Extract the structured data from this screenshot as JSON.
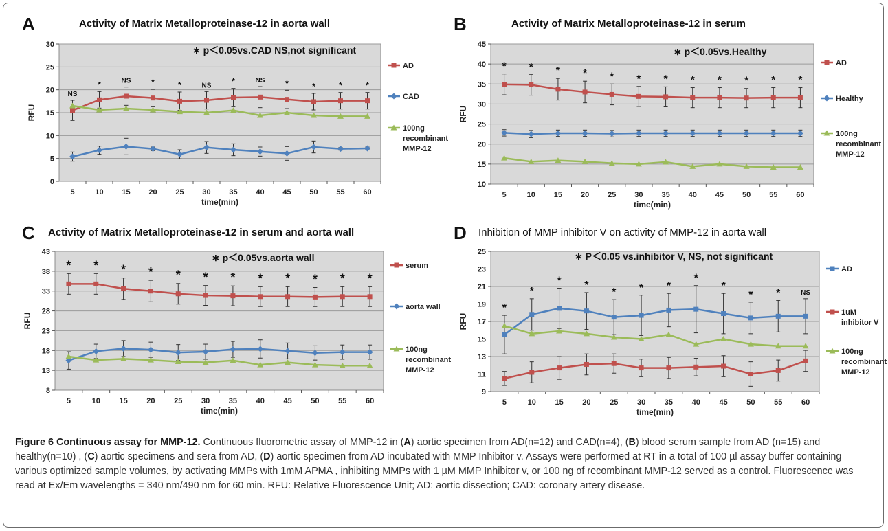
{
  "colors": {
    "red": "#c0504d",
    "blue": "#4f81bd",
    "green": "#9bbb59",
    "plot_bg": "#d9d9d9"
  },
  "caption": {
    "title": "Figure 6 Continuous assay for MMP-12.",
    "s1": " Continuous fluorometric assay of MMP-12 in (",
    "A": "A",
    "s2": ") aortic specimen from AD(n=12) and CAD(n=4), (",
    "B": "B",
    "s3": ") blood serum sample from AD (n=15) and healthy(n=10) , (",
    "C": "C",
    "s4": ") aortic specimens and sera from AD, (",
    "D": "D",
    "s5": ") aortic specimen from AD incubated with MMP Inhibitor v. Assays were performed at RT in a total of 100 µl assay buffer containing various optimized sample volumes, by activating MMPs with 1mM APMA , inhibiting MMPs with 1 µM MMP Inhibitor v, or 100 ng of recombinant MMP-12 served as a control. Fluorescence was read at Ex/Em wavelengths = 340 nm/490 nm for 60 min. RFU: Relative Fluorescence Unit; AD: aortic dissection; CAD: coronary artery disease."
  },
  "chart_data": [
    {
      "panel": "A",
      "type": "line",
      "title": "Activity of Matrix Metalloproteinase-12 in aorta wall",
      "xlabel": "time(min)",
      "ylabel": "RFU",
      "x": [
        5,
        10,
        15,
        20,
        25,
        30,
        35,
        40,
        45,
        50,
        55,
        60
      ],
      "ylim": [
        0,
        30
      ],
      "yticks": [
        0,
        5,
        10,
        15,
        20,
        25,
        30
      ],
      "annotation": "∗  p＜0.05vs.CAD NS,not significant",
      "significance": [
        "NS",
        "*",
        "NS",
        "*",
        "*",
        "NS",
        "*",
        "NS",
        "*",
        "*",
        "*",
        "*"
      ],
      "series": [
        {
          "name": "AD",
          "color": "#c0504d",
          "marker": "square",
          "values": [
            15.5,
            17.8,
            18.6,
            18.2,
            17.5,
            17.7,
            18.3,
            18.4,
            17.9,
            17.4,
            17.6,
            17.6
          ],
          "errors": [
            2.2,
            1.8,
            2.0,
            1.9,
            2.0,
            1.9,
            2.0,
            2.3,
            2.0,
            1.8,
            1.8,
            1.8
          ]
        },
        {
          "name": "CAD",
          "color": "#4f81bd",
          "marker": "diamond",
          "values": [
            5.4,
            6.8,
            7.6,
            7.1,
            5.9,
            7.4,
            6.9,
            6.5,
            6.1,
            7.5,
            7.1,
            7.2
          ],
          "errors": [
            1.0,
            0.9,
            1.8,
            0.4,
            1.0,
            1.3,
            1.3,
            1.0,
            1.5,
            1.3,
            0.3,
            0.3
          ]
        },
        {
          "name": "100ng recombinant MMP-12",
          "color": "#9bbb59",
          "marker": "triangle",
          "values": [
            16.5,
            15.6,
            15.9,
            15.6,
            15.2,
            15.0,
            15.5,
            14.4,
            15.0,
            14.4,
            14.2,
            14.2
          ],
          "errors": [
            0,
            0,
            0,
            0,
            0,
            0,
            0,
            0,
            0,
            0,
            0,
            0
          ]
        }
      ]
    },
    {
      "panel": "B",
      "type": "line",
      "title": "Activity of Matrix Metalloproteinase-12 in serum",
      "xlabel": "time(min)",
      "ylabel": "RFU",
      "x": [
        5,
        10,
        15,
        20,
        25,
        30,
        35,
        40,
        45,
        50,
        55,
        60
      ],
      "ylim": [
        10,
        45
      ],
      "yticks": [
        10,
        15,
        20,
        25,
        30,
        35,
        40,
        45
      ],
      "annotation": "∗  p＜0.05vs.Healthy",
      "significance": [
        "*",
        "*",
        "*",
        "*",
        "*",
        "*",
        "*",
        "*",
        "*",
        "*",
        "*",
        "*"
      ],
      "series": [
        {
          "name": "AD",
          "color": "#c0504d",
          "marker": "square",
          "values": [
            34.9,
            34.8,
            33.7,
            33.0,
            32.4,
            31.9,
            31.8,
            31.6,
            31.6,
            31.5,
            31.6,
            31.6
          ],
          "errors": [
            2.6,
            2.6,
            2.7,
            2.7,
            2.6,
            2.5,
            2.5,
            2.5,
            2.5,
            2.4,
            2.5,
            2.5
          ]
        },
        {
          "name": "Healthy",
          "color": "#4f81bd",
          "marker": "diamond",
          "values": [
            22.8,
            22.5,
            22.7,
            22.7,
            22.6,
            22.7,
            22.7,
            22.7,
            22.7,
            22.7,
            22.7,
            22.7
          ],
          "errors": [
            0.8,
            0.9,
            0.8,
            0.8,
            0.8,
            0.8,
            0.8,
            0.8,
            0.8,
            0.8,
            0.8,
            0.8
          ]
        },
        {
          "name": "100ng recombinant MMP-12",
          "color": "#9bbb59",
          "marker": "triangle",
          "values": [
            16.5,
            15.6,
            15.9,
            15.6,
            15.2,
            15.0,
            15.5,
            14.4,
            15.0,
            14.4,
            14.2,
            14.2
          ],
          "errors": [
            0,
            0,
            0,
            0,
            0,
            0,
            0,
            0,
            0,
            0,
            0,
            0
          ]
        }
      ]
    },
    {
      "panel": "C",
      "type": "line",
      "title": "Activity of Matrix Metalloproteinase-12 in serum and aorta wall",
      "xlabel": "time(min)",
      "ylabel": "RFU",
      "x": [
        5,
        10,
        15,
        20,
        25,
        30,
        35,
        40,
        45,
        50,
        55,
        60
      ],
      "ylim": [
        8,
        43
      ],
      "yticks": [
        8,
        13,
        18,
        23,
        28,
        33,
        38,
        43
      ],
      "annotation": "∗ p＜0.05vs.aorta wall",
      "significance": [
        "*",
        "*",
        "*",
        "*",
        "*",
        "*",
        "*",
        "*",
        "*",
        "*",
        "*",
        "*"
      ],
      "series": [
        {
          "name": "serum",
          "color": "#c0504d",
          "marker": "square",
          "values": [
            34.8,
            34.8,
            33.6,
            33.0,
            32.3,
            31.9,
            31.8,
            31.6,
            31.6,
            31.5,
            31.6,
            31.6
          ],
          "errors": [
            2.6,
            2.6,
            2.7,
            2.7,
            2.6,
            2.5,
            2.5,
            2.5,
            2.5,
            2.4,
            2.5,
            2.5
          ]
        },
        {
          "name": "aorta wall",
          "color": "#4f81bd",
          "marker": "diamond",
          "values": [
            15.5,
            17.8,
            18.5,
            18.2,
            17.5,
            17.7,
            18.3,
            18.4,
            17.9,
            17.4,
            17.6,
            17.6
          ],
          "errors": [
            2.2,
            1.8,
            2.0,
            1.9,
            2.0,
            1.9,
            2.0,
            2.3,
            2.0,
            1.8,
            1.8,
            1.8
          ]
        },
        {
          "name": "100ng recombinant MMP-12",
          "color": "#9bbb59",
          "marker": "triangle",
          "values": [
            16.5,
            15.6,
            15.9,
            15.6,
            15.2,
            15.0,
            15.5,
            14.4,
            15.0,
            14.4,
            14.2,
            14.2
          ],
          "errors": [
            0,
            0,
            0,
            0,
            0,
            0,
            0,
            0,
            0,
            0,
            0,
            0
          ]
        }
      ]
    },
    {
      "panel": "D",
      "type": "line",
      "title": "Inhibition of MMP inhibitor V on activity of MMP-12 in aorta wall",
      "xlabel": "time(min)",
      "ylabel": "RFU",
      "x": [
        5,
        10,
        15,
        20,
        25,
        30,
        35,
        40,
        45,
        50,
        55,
        60
      ],
      "ylim": [
        9,
        25
      ],
      "yticks": [
        9,
        11,
        13,
        15,
        17,
        19,
        21,
        23,
        25
      ],
      "annotation": "∗ P＜0.05 vs.inhibitor V, NS,  not significant",
      "significance": [
        "*",
        "*",
        "*",
        "*",
        "*",
        "*",
        "*",
        "*",
        "*",
        "*",
        "*",
        "NS"
      ],
      "series": [
        {
          "name": "AD",
          "color": "#4f81bd",
          "marker": "square",
          "values": [
            15.5,
            17.8,
            18.5,
            18.2,
            17.5,
            17.7,
            18.3,
            18.4,
            17.9,
            17.4,
            17.6,
            17.6
          ],
          "errors": [
            2.2,
            1.8,
            2.3,
            2.1,
            2.0,
            2.3,
            1.9,
            2.7,
            2.3,
            1.8,
            1.8,
            2.0
          ]
        },
        {
          "name": "1uM inhibitor V",
          "color": "#c0504d",
          "marker": "square",
          "values": [
            10.5,
            11.2,
            11.7,
            12.1,
            12.2,
            11.7,
            11.7,
            11.8,
            11.9,
            11.0,
            11.4,
            12.5
          ],
          "errors": [
            0.8,
            1.2,
            1.3,
            1.2,
            1.1,
            1.0,
            1.2,
            1.0,
            1.2,
            1.4,
            1.2,
            1.2
          ]
        },
        {
          "name": "100ng recombinant MMP-12",
          "color": "#9bbb59",
          "marker": "triangle",
          "values": [
            16.5,
            15.6,
            15.9,
            15.6,
            15.2,
            15.0,
            15.5,
            14.4,
            15.0,
            14.4,
            14.2,
            14.2
          ],
          "errors": [
            0,
            0,
            0,
            0,
            0,
            0,
            0,
            0,
            0,
            0,
            0,
            0
          ]
        }
      ]
    }
  ]
}
